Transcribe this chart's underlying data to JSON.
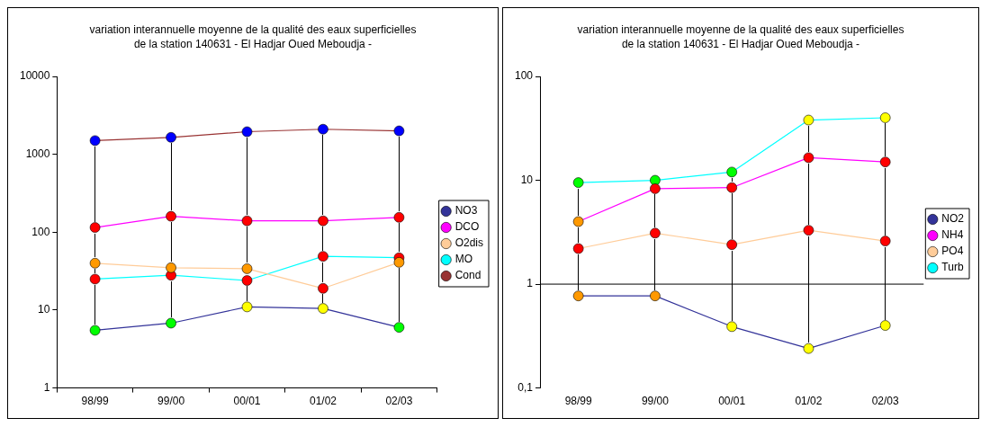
{
  "chart_data": [
    {
      "type": "line",
      "title": "variation interannuelle moyenne de la qualité des eaux superficielles\nde la station 140631 - El Hadjar Oued Meboudja -",
      "categories": [
        "98/99",
        "99/00",
        "00/01",
        "01/02",
        "02/03"
      ],
      "series": [
        {
          "name": "NO3",
          "color": "#333399",
          "colors": [
            "#00ff00",
            "#00ff00",
            "#ffff00",
            "#ffff00",
            "#00ff00"
          ],
          "values": [
            5.5,
            6.8,
            11,
            10.5,
            6
          ]
        },
        {
          "name": "DCO",
          "color": "#ff00ff",
          "colors": [
            "#ff0000",
            "#ff0000",
            "#ff0000",
            "#ff0000",
            "#ff0000"
          ],
          "values": [
            115,
            160,
            140,
            140,
            155
          ]
        },
        {
          "name": "O2dis",
          "color": "#ffcc99",
          "colors": [
            "#ff9900",
            "#ff9900",
            "#ff9900",
            "#ff0000",
            "#ff9900"
          ],
          "values": [
            40,
            35,
            34,
            19,
            41
          ]
        },
        {
          "name": "MO",
          "color": "#00ffff",
          "colors": [
            "#ff0000",
            "#ff0000",
            "#ff0000",
            "#ff0000",
            "#ff0000"
          ],
          "values": [
            25,
            28,
            24,
            49,
            47
          ]
        },
        {
          "name": "Cond",
          "color": "#993333",
          "colors": [
            "#0000ff",
            "#0000ff",
            "#0000ff",
            "#0000ff",
            "#0000ff"
          ],
          "values": [
            1500,
            1650,
            1950,
            2100,
            2000
          ]
        }
      ],
      "ylim": [
        1,
        10000
      ],
      "yticks": [
        1,
        10,
        100,
        1000,
        10000
      ],
      "log": true,
      "grid": false,
      "legend": "right",
      "marker": "circle"
    },
    {
      "type": "line",
      "title": "variation interannuelle moyenne de la qualité des eaux superficielles\nde la station 140631 - El Hadjar Oued Meboudja -",
      "categories": [
        "98/99",
        "99/00",
        "00/01",
        "01/02",
        "02/03"
      ],
      "series": [
        {
          "name": "NO2",
          "color": "#333399",
          "colors": [
            "#ff9900",
            "#ff9900",
            "#ffff00",
            "#ffff00",
            "#ffff00"
          ],
          "values": [
            0.77,
            0.77,
            0.39,
            0.24,
            0.4
          ]
        },
        {
          "name": "NH4",
          "color": "#ff00ff",
          "colors": [
            "#ff9900",
            "#ff0000",
            "#ff0000",
            "#ff0000",
            "#ff0000"
          ],
          "values": [
            4,
            8.3,
            8.5,
            16.5,
            15
          ]
        },
        {
          "name": "PO4",
          "color": "#ffcc99",
          "colors": [
            "#ff0000",
            "#ff0000",
            "#ff0000",
            "#ff0000",
            "#ff0000"
          ],
          "values": [
            2.2,
            3.1,
            2.4,
            3.3,
            2.6
          ]
        },
        {
          "name": "Turb",
          "color": "#00ffff",
          "colors": [
            "#00ff00",
            "#00ff00",
            "#00ff00",
            "#ffff00",
            "#ffff00"
          ],
          "values": [
            9.5,
            10,
            12,
            38,
            40
          ]
        }
      ],
      "ylim": [
        0.1,
        100
      ],
      "yticks": [
        {
          "value": 0.1,
          "label": "0,1"
        },
        1,
        10,
        100
      ],
      "log": true,
      "grid": false,
      "legend": "right",
      "marker": "circle",
      "ref_lines": [
        {
          "axis": "y",
          "value": 1,
          "color": "#000000"
        }
      ]
    }
  ]
}
